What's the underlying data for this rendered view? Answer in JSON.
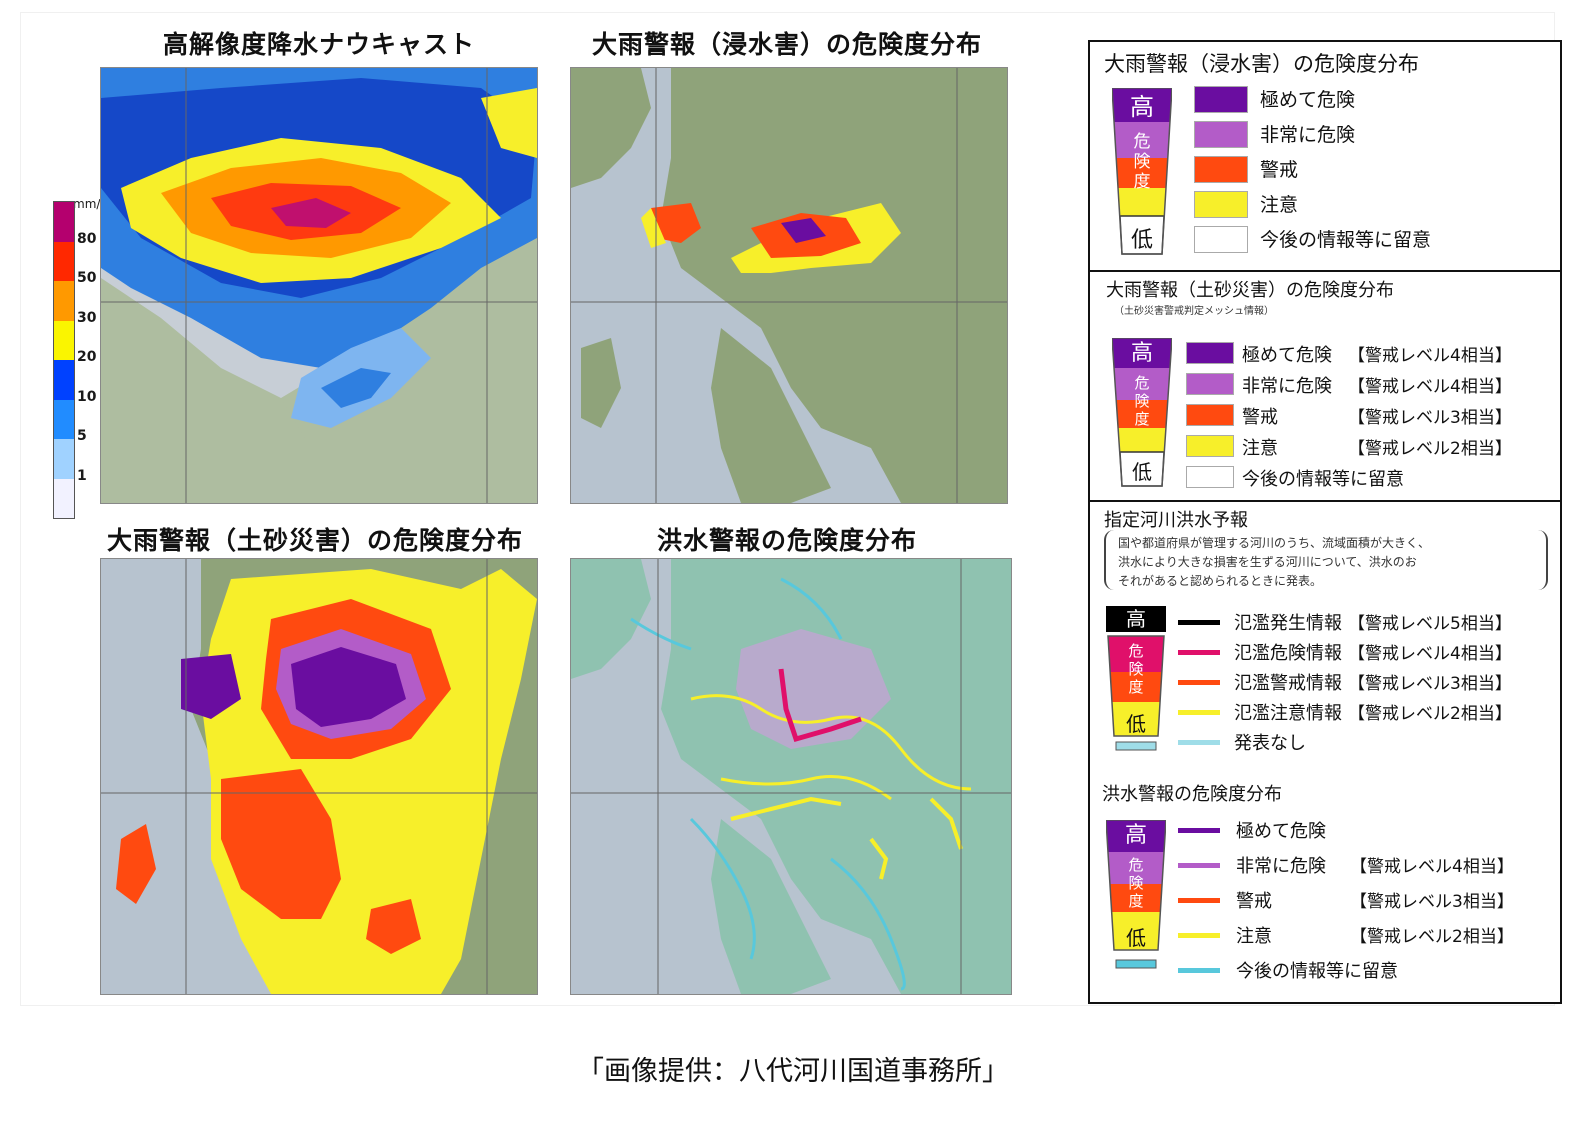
{
  "maps": {
    "nowcast": {
      "title": "高解像度降水ナウキャスト"
    },
    "inundation": {
      "title": "大雨警報（浸水害）の危険度分布"
    },
    "landslide": {
      "title": "大雨警報（土砂災害）の危険度分布"
    },
    "flood": {
      "title": "洪水警報の危険度分布"
    }
  },
  "rain_scale": {
    "unit": "mm/h",
    "ticks": [
      "80",
      "50",
      "30",
      "20",
      "10",
      "5",
      "1"
    ],
    "colors": [
      "#b4006e",
      "#ff2800",
      "#ff9900",
      "#faf500",
      "#0041ff",
      "#218cff",
      "#a0d2ff",
      "#f2f2ff"
    ]
  },
  "legend": {
    "inundation": {
      "title": "大雨警報（浸水害）の危険度分布",
      "gauge": {
        "high": "高",
        "mid": "危険度",
        "low": "低"
      },
      "items": [
        {
          "label": "極めて危険",
          "color": "#6a0da0"
        },
        {
          "label": "非常に危険",
          "color": "#b35cc8"
        },
        {
          "label": "警戒",
          "color": "#ff4a10"
        },
        {
          "label": "注意",
          "color": "#f7ef2a"
        },
        {
          "label": "今後の情報等に留意",
          "color": "#ffffff"
        }
      ]
    },
    "landslide": {
      "title": "大雨警報（土砂災害）の危険度分布",
      "note": "（土砂災害警戒判定メッシュ情報）",
      "gauge": {
        "high": "高",
        "mid": "危険度",
        "low": "低"
      },
      "items": [
        {
          "label": "極めて危険",
          "level": "【警戒レベル4相当】",
          "color": "#6a0da0"
        },
        {
          "label": "非常に危険",
          "level": "【警戒レベル4相当】",
          "color": "#b35cc8"
        },
        {
          "label": "警戒",
          "level": "【警戒レベル3相当】",
          "color": "#ff4a10"
        },
        {
          "label": "注意",
          "level": "【警戒レベル2相当】",
          "color": "#f7ef2a"
        },
        {
          "label": "今後の情報等に留意",
          "level": "",
          "color": "#ffffff"
        }
      ]
    },
    "river": {
      "title": "指定河川洪水予報",
      "note_lines": [
        "国や都道府県が管理する河川のうち、流域面積が大きく、",
        "洪水により大きな損害を生ずる河川について、洪水のお",
        "それがあると認められるときに発表。"
      ],
      "gauge": {
        "high": "高",
        "mid": "危険度",
        "low": "低"
      },
      "items": [
        {
          "label": "氾濫発生情報",
          "level": "【警戒レベル5相当】",
          "color": "#000000"
        },
        {
          "label": "氾濫危険情報",
          "level": "【警戒レベル4相当】",
          "color": "#e0106a"
        },
        {
          "label": "氾濫警戒情報",
          "level": "【警戒レベル3相当】",
          "color": "#ff4a10"
        },
        {
          "label": "氾濫注意情報",
          "level": "【警戒レベル2相当】",
          "color": "#f7ef2a"
        },
        {
          "label": "発表なし",
          "level": "",
          "color": "#9fdde8"
        }
      ]
    },
    "flood": {
      "title": "洪水警報の危険度分布",
      "gauge": {
        "high": "高",
        "mid": "危険度",
        "low": "低"
      },
      "items": [
        {
          "label": "極めて危険",
          "level": "",
          "color": "#6a0da0"
        },
        {
          "label": "非常に危険",
          "level": "【警戒レベル4相当】",
          "color": "#b35cc8"
        },
        {
          "label": "警戒",
          "level": "【警戒レベル3相当】",
          "color": "#ff4a10"
        },
        {
          "label": "注意",
          "level": "【警戒レベル2相当】",
          "color": "#f7ef2a"
        },
        {
          "label": "今後の情報等に留意",
          "level": "",
          "color": "#58c8dc"
        }
      ]
    }
  },
  "caption": "「画像提供：八代河川国道事務所」"
}
